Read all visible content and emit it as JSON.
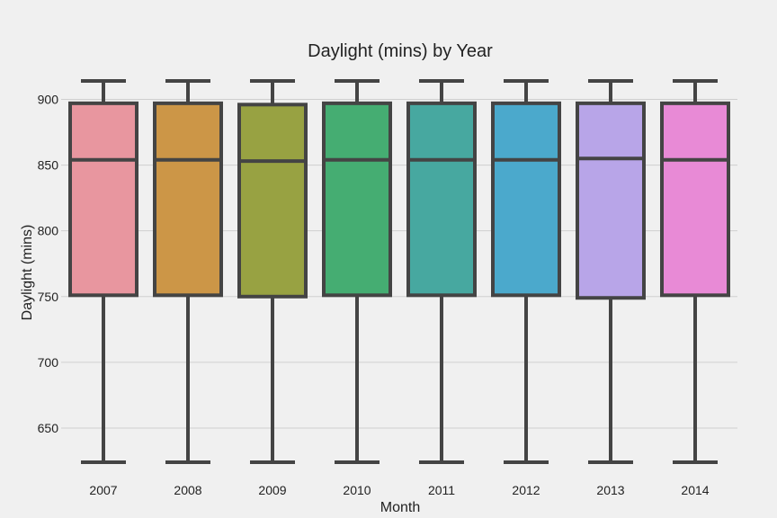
{
  "chart_data": {
    "type": "box",
    "title": "Daylight (mins) by Year",
    "xlabel": "Month",
    "ylabel": "Daylight (mins)",
    "ylim": [
      620,
      918
    ],
    "yticks": [
      650,
      700,
      750,
      800,
      850,
      900
    ],
    "ytick_labels": [
      "650",
      "700",
      "750",
      "800",
      "850",
      "900"
    ],
    "grid": "horizontal",
    "categories": [
      "2007",
      "2008",
      "2009",
      "2010",
      "2011",
      "2012",
      "2013",
      "2014"
    ],
    "boxes": [
      {
        "category": "2007",
        "whisker_low": 624,
        "q1": 751,
        "median": 854,
        "q3": 897,
        "whisker_high": 914,
        "color": "#e8969f"
      },
      {
        "category": "2008",
        "whisker_low": 624,
        "q1": 751,
        "median": 854,
        "q3": 897,
        "whisker_high": 914,
        "color": "#cc9647"
      },
      {
        "category": "2009",
        "whisker_low": 624,
        "q1": 750,
        "median": 853,
        "q3": 896,
        "whisker_high": 914,
        "color": "#98a242"
      },
      {
        "category": "2010",
        "whisker_low": 624,
        "q1": 751,
        "median": 854,
        "q3": 897,
        "whisker_high": 914,
        "color": "#45ad72"
      },
      {
        "category": "2011",
        "whisker_low": 624,
        "q1": 751,
        "median": 854,
        "q3": 897,
        "whisker_high": 914,
        "color": "#47a8a0"
      },
      {
        "category": "2012",
        "whisker_low": 624,
        "q1": 751,
        "median": 854,
        "q3": 897,
        "whisker_high": 914,
        "color": "#4ba9cc"
      },
      {
        "category": "2013",
        "whisker_low": 624,
        "q1": 749,
        "median": 855,
        "q3": 897,
        "whisker_high": 914,
        "color": "#b8a5e8"
      },
      {
        "category": "2014",
        "whisker_low": 624,
        "q1": 751,
        "median": 854,
        "q3": 897,
        "whisker_high": 914,
        "color": "#e88ad6"
      }
    ],
    "box_edge_color": "#444444",
    "grid_color": "#cfcfcf",
    "background_color": "#f0f0f0"
  }
}
